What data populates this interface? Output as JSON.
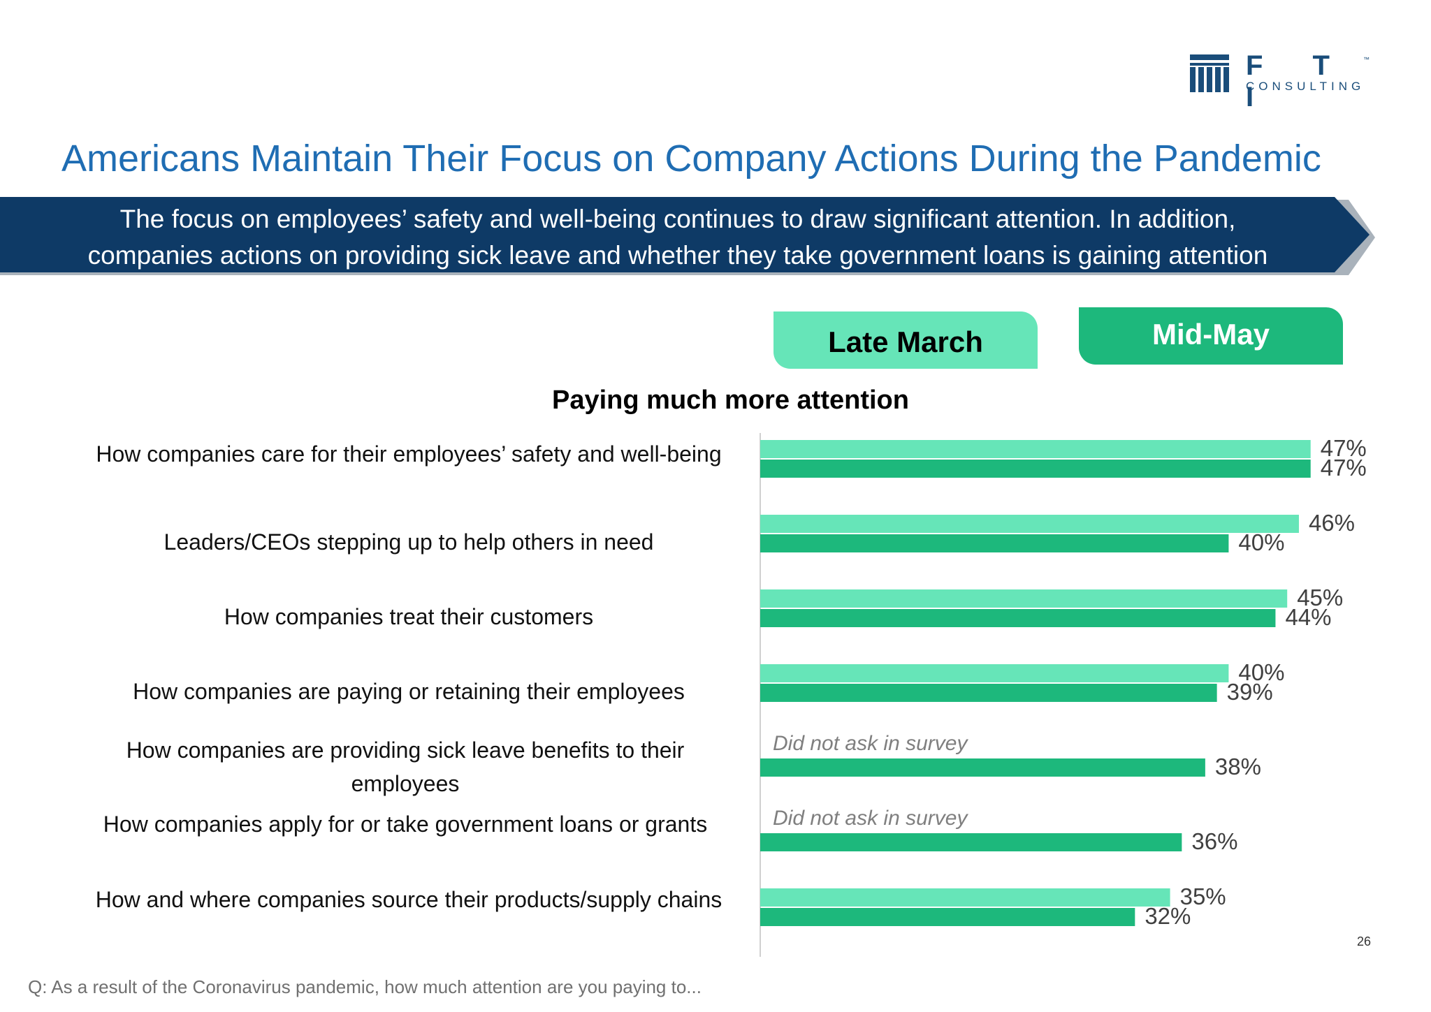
{
  "brand": {
    "wordmark": "F T I",
    "sub": "CONSULTING",
    "tm": "™"
  },
  "title": "Americans Maintain Their Focus on Company Actions During the Pandemic",
  "banner": {
    "line1": "The focus on employees’ safety and well-being continues to draw significant attention. In addition,",
    "line2": "companies actions on providing sick leave and whether they take government loans is gaining attention"
  },
  "colors": {
    "late_march": "#66e5b8",
    "mid_may": "#1db87c",
    "banner": "#0e3a66",
    "title": "#1f6db3"
  },
  "chart_data": {
    "type": "bar",
    "orientation": "horizontal",
    "title": "Paying much more attention",
    "unit": "%",
    "series": [
      {
        "name": "Late March",
        "values": [
          47,
          46,
          45,
          40,
          null,
          null,
          35
        ]
      },
      {
        "name": "Mid-May",
        "values": [
          47,
          40,
          44,
          39,
          38,
          36,
          32
        ]
      }
    ],
    "categories": [
      "How companies care for their employees’ safety and well-being",
      "Leaders/CEOs stepping up to help others in need",
      "How companies treat their customers",
      "How companies are paying or retaining their employees",
      "How companies are providing sick leave benefits to their employees",
      "How companies apply for or take government loans or grants",
      "How and where companies source their products/supply chains"
    ],
    "missing_label": "Did not ask in survey",
    "xlim": [
      0,
      47
    ],
    "grid": false,
    "legend": "top-right"
  },
  "footnote": "Q: As a result of the Coronavirus pandemic, how much attention are you paying to...",
  "page_number": "26"
}
